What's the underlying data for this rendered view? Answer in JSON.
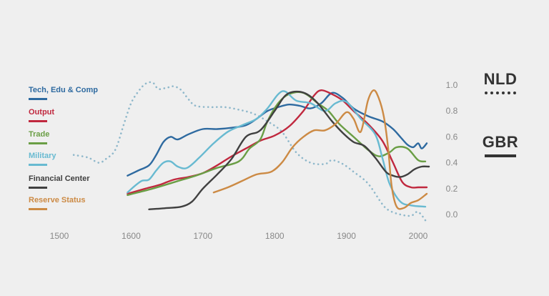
{
  "chart_data": {
    "type": "line",
    "xlim": [
      1500,
      2015
    ],
    "ylim": [
      0,
      1
    ],
    "x_ticks": [
      "1500",
      "1600",
      "1700",
      "1800",
      "1900",
      "2000"
    ],
    "y_ticks": [
      "1.0",
      "0.8",
      "0.6",
      "0.4",
      "0.2",
      "0.0"
    ],
    "grid": false,
    "legend_position": "left",
    "series": [
      {
        "name": "Tech, Edu & Comp",
        "color": "#2e6aa0",
        "dash": false,
        "points": [
          [
            1595,
            0.3
          ],
          [
            1610,
            0.34
          ],
          [
            1625,
            0.38
          ],
          [
            1635,
            0.46
          ],
          [
            1645,
            0.56
          ],
          [
            1655,
            0.6
          ],
          [
            1665,
            0.58
          ],
          [
            1680,
            0.62
          ],
          [
            1700,
            0.66
          ],
          [
            1720,
            0.66
          ],
          [
            1740,
            0.67
          ],
          [
            1760,
            0.69
          ],
          [
            1775,
            0.74
          ],
          [
            1790,
            0.8
          ],
          [
            1805,
            0.83
          ],
          [
            1820,
            0.85
          ],
          [
            1835,
            0.84
          ],
          [
            1850,
            0.82
          ],
          [
            1865,
            0.86
          ],
          [
            1880,
            0.94
          ],
          [
            1895,
            0.9
          ],
          [
            1910,
            0.82
          ],
          [
            1930,
            0.76
          ],
          [
            1950,
            0.72
          ],
          [
            1965,
            0.66
          ],
          [
            1975,
            0.6
          ],
          [
            1985,
            0.54
          ],
          [
            1993,
            0.52
          ],
          [
            2000,
            0.55
          ],
          [
            2005,
            0.51
          ],
          [
            2012,
            0.55
          ]
        ]
      },
      {
        "name": "Output",
        "color": "#c0283e",
        "dash": false,
        "points": [
          [
            1595,
            0.16
          ],
          [
            1620,
            0.2
          ],
          [
            1640,
            0.23
          ],
          [
            1660,
            0.27
          ],
          [
            1680,
            0.29
          ],
          [
            1700,
            0.32
          ],
          [
            1720,
            0.38
          ],
          [
            1740,
            0.45
          ],
          [
            1760,
            0.51
          ],
          [
            1780,
            0.57
          ],
          [
            1800,
            0.61
          ],
          [
            1820,
            0.68
          ],
          [
            1840,
            0.8
          ],
          [
            1855,
            0.92
          ],
          [
            1865,
            0.96
          ],
          [
            1880,
            0.93
          ],
          [
            1895,
            0.88
          ],
          [
            1910,
            0.8
          ],
          [
            1930,
            0.7
          ],
          [
            1950,
            0.57
          ],
          [
            1965,
            0.4
          ],
          [
            1978,
            0.25
          ],
          [
            1990,
            0.21
          ],
          [
            2000,
            0.21
          ],
          [
            2012,
            0.21
          ]
        ]
      },
      {
        "name": "Trade",
        "color": "#6a9e45",
        "dash": false,
        "points": [
          [
            1595,
            0.15
          ],
          [
            1630,
            0.2
          ],
          [
            1660,
            0.25
          ],
          [
            1690,
            0.3
          ],
          [
            1720,
            0.36
          ],
          [
            1750,
            0.41
          ],
          [
            1765,
            0.51
          ],
          [
            1780,
            0.58
          ],
          [
            1790,
            0.72
          ],
          [
            1805,
            0.86
          ],
          [
            1820,
            0.93
          ],
          [
            1840,
            0.94
          ],
          [
            1860,
            0.86
          ],
          [
            1875,
            0.8
          ],
          [
            1890,
            0.7
          ],
          [
            1910,
            0.6
          ],
          [
            1930,
            0.5
          ],
          [
            1945,
            0.45
          ],
          [
            1960,
            0.48
          ],
          [
            1970,
            0.52
          ],
          [
            1985,
            0.51
          ],
          [
            2000,
            0.42
          ],
          [
            2010,
            0.41
          ]
        ]
      },
      {
        "name": "Military",
        "color": "#68bad1",
        "dash": false,
        "points": [
          [
            1595,
            0.17
          ],
          [
            1605,
            0.22
          ],
          [
            1615,
            0.26
          ],
          [
            1625,
            0.27
          ],
          [
            1635,
            0.34
          ],
          [
            1645,
            0.4
          ],
          [
            1655,
            0.41
          ],
          [
            1665,
            0.37
          ],
          [
            1678,
            0.36
          ],
          [
            1695,
            0.44
          ],
          [
            1715,
            0.55
          ],
          [
            1735,
            0.64
          ],
          [
            1755,
            0.69
          ],
          [
            1775,
            0.74
          ],
          [
            1790,
            0.82
          ],
          [
            1805,
            0.93
          ],
          [
            1815,
            0.95
          ],
          [
            1830,
            0.88
          ],
          [
            1850,
            0.86
          ],
          [
            1870,
            0.8
          ],
          [
            1885,
            0.86
          ],
          [
            1900,
            0.87
          ],
          [
            1920,
            0.74
          ],
          [
            1940,
            0.62
          ],
          [
            1950,
            0.44
          ],
          [
            1960,
            0.24
          ],
          [
            1975,
            0.1
          ],
          [
            1990,
            0.07
          ],
          [
            2010,
            0.06
          ]
        ]
      },
      {
        "name": "Financial Center",
        "color": "#404040",
        "dash": false,
        "points": [
          [
            1625,
            0.04
          ],
          [
            1650,
            0.05
          ],
          [
            1670,
            0.06
          ],
          [
            1685,
            0.1
          ],
          [
            1700,
            0.2
          ],
          [
            1720,
            0.31
          ],
          [
            1740,
            0.43
          ],
          [
            1760,
            0.6
          ],
          [
            1780,
            0.65
          ],
          [
            1800,
            0.8
          ],
          [
            1815,
            0.92
          ],
          [
            1830,
            0.95
          ],
          [
            1845,
            0.93
          ],
          [
            1860,
            0.86
          ],
          [
            1880,
            0.72
          ],
          [
            1895,
            0.63
          ],
          [
            1910,
            0.56
          ],
          [
            1925,
            0.53
          ],
          [
            1940,
            0.44
          ],
          [
            1955,
            0.33
          ],
          [
            1965,
            0.3
          ],
          [
            1975,
            0.29
          ],
          [
            1985,
            0.31
          ],
          [
            1995,
            0.35
          ],
          [
            2005,
            0.37
          ],
          [
            2015,
            0.37
          ]
        ]
      },
      {
        "name": "Reserve Status",
        "color": "#cc8a44",
        "dash": false,
        "points": [
          [
            1715,
            0.17
          ],
          [
            1735,
            0.21
          ],
          [
            1755,
            0.26
          ],
          [
            1775,
            0.31
          ],
          [
            1795,
            0.33
          ],
          [
            1810,
            0.4
          ],
          [
            1825,
            0.52
          ],
          [
            1840,
            0.6
          ],
          [
            1855,
            0.65
          ],
          [
            1870,
            0.65
          ],
          [
            1885,
            0.7
          ],
          [
            1900,
            0.79
          ],
          [
            1910,
            0.74
          ],
          [
            1920,
            0.64
          ],
          [
            1930,
            0.88
          ],
          [
            1938,
            0.96
          ],
          [
            1945,
            0.9
          ],
          [
            1952,
            0.76
          ],
          [
            1958,
            0.52
          ],
          [
            1963,
            0.22
          ],
          [
            1970,
            0.06
          ],
          [
            1980,
            0.05
          ],
          [
            1990,
            0.09
          ],
          [
            2000,
            0.11
          ],
          [
            2012,
            0.16
          ]
        ]
      },
      {
        "name": "NLD",
        "color": "#8fb8cb",
        "dash": true,
        "points": [
          [
            1520,
            0.46
          ],
          [
            1540,
            0.44
          ],
          [
            1555,
            0.4
          ],
          [
            1565,
            0.43
          ],
          [
            1578,
            0.5
          ],
          [
            1590,
            0.7
          ],
          [
            1600,
            0.86
          ],
          [
            1610,
            0.95
          ],
          [
            1620,
            1.01
          ],
          [
            1630,
            1.02
          ],
          [
            1638,
            0.97
          ],
          [
            1650,
            0.98
          ],
          [
            1660,
            0.99
          ],
          [
            1670,
            0.96
          ],
          [
            1680,
            0.89
          ],
          [
            1690,
            0.84
          ],
          [
            1710,
            0.83
          ],
          [
            1730,
            0.83
          ],
          [
            1750,
            0.81
          ],
          [
            1770,
            0.78
          ],
          [
            1790,
            0.72
          ],
          [
            1810,
            0.64
          ],
          [
            1830,
            0.48
          ],
          [
            1850,
            0.4
          ],
          [
            1870,
            0.39
          ],
          [
            1880,
            0.42
          ],
          [
            1895,
            0.39
          ],
          [
            1910,
            0.33
          ],
          [
            1930,
            0.24
          ],
          [
            1950,
            0.08
          ],
          [
            1960,
            0.03
          ],
          [
            1975,
            0.0
          ],
          [
            1990,
            -0.01
          ],
          [
            2000,
            0.02
          ],
          [
            2012,
            -0.06
          ]
        ]
      }
    ]
  },
  "legend": [
    {
      "label": "Tech, Edu & Comp",
      "color": "#2e6aa0"
    },
    {
      "label": "Output",
      "color": "#c0283e"
    },
    {
      "label": "Trade",
      "color": "#6a9e45"
    },
    {
      "label": "Military",
      "color": "#68bad1"
    },
    {
      "label": "Financial Center",
      "color": "#404040"
    },
    {
      "label": "Reserve Status",
      "color": "#cc8a44"
    }
  ],
  "countries": {
    "nld": {
      "label": "NLD",
      "line_style": "dotted"
    },
    "gbr": {
      "label": "GBR",
      "line_style": "solid"
    }
  }
}
